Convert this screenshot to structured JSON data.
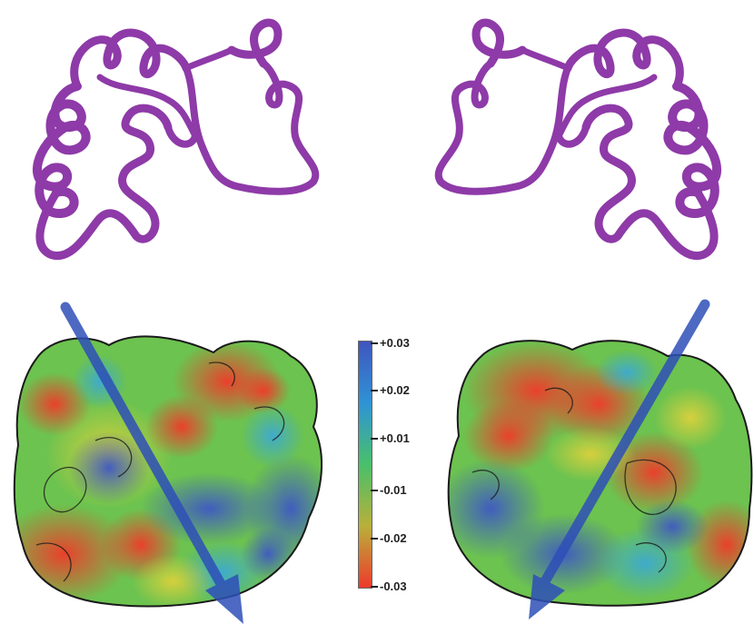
{
  "colors": {
    "ribbon": "#8e3aa8",
    "scale_top": "#3f55bf",
    "scale_upper": "#2f93d6",
    "scale_mid": "#49c06a",
    "scale_lower": "#b8b03a",
    "scale_bottom": "#ee3a2c",
    "arrow": "#2e4fb8"
  },
  "colorbar": {
    "ticks": [
      "+0.03",
      "+0.02",
      "+0.01",
      "-0.01",
      "-0.02",
      "-0.03"
    ]
  },
  "icons": [
    "protein-ribbon-left",
    "protein-ribbon-right",
    "electrostatic-surface-left",
    "electrostatic-surface-right",
    "dipole-arrow-left",
    "dipole-arrow-right"
  ]
}
